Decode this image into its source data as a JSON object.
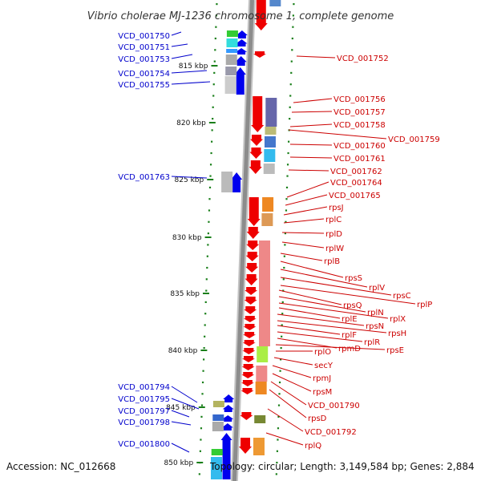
{
  "title": "Vibrio cholerae MJ-1236 chromosome 1, complete genome",
  "footer": {
    "accession": "Accession: NC_012668",
    "summary": "Topology: circular; Length: 3,149,584 bp; Genes: 2,884"
  },
  "colors": {
    "left_label": "#0000cc",
    "right_label": "#cc0000",
    "backbone": "#8c8c8c",
    "tick": "#1a7f1a",
    "forward_arrow": "#0000ee",
    "reverse_arrow": "#ee0000"
  },
  "kbp_ticks": [
    "815 kbp",
    "820 kbp",
    "825 kbp",
    "830 kbp",
    "835 kbp",
    "840 kbp",
    "845 kbp",
    "850 kbp"
  ],
  "left_labels": [
    "VCD_001750",
    "VCD_001751",
    "VCD_001753",
    "VCD_001754",
    "VCD_001755",
    "VCD_001763",
    "VCD_001794",
    "VCD_001795",
    "VCD_001797",
    "VCD_001798",
    "VCD_001800"
  ],
  "right_labels": [
    "VCD_001752",
    "VCD_001756",
    "VCD_001757",
    "VCD_001758",
    "VCD_001759",
    "VCD_001760",
    "VCD_001761",
    "VCD_001762",
    "VCD_001764",
    "VCD_001765",
    "rpsJ",
    "rplC",
    "rplD",
    "rplW",
    "rplB",
    "rpsS",
    "rplV",
    "rpsC",
    "rplP",
    "rpsQ",
    "rplN",
    "rplX",
    "rplE",
    "rpsN",
    "rpsH",
    "rplF",
    "rplR",
    "rpmD",
    "rpsE",
    "rplO",
    "secY",
    "rpmJ",
    "rpsM",
    "VCD_001790",
    "rpsD",
    "VCD_001792",
    "rplQ"
  ]
}
